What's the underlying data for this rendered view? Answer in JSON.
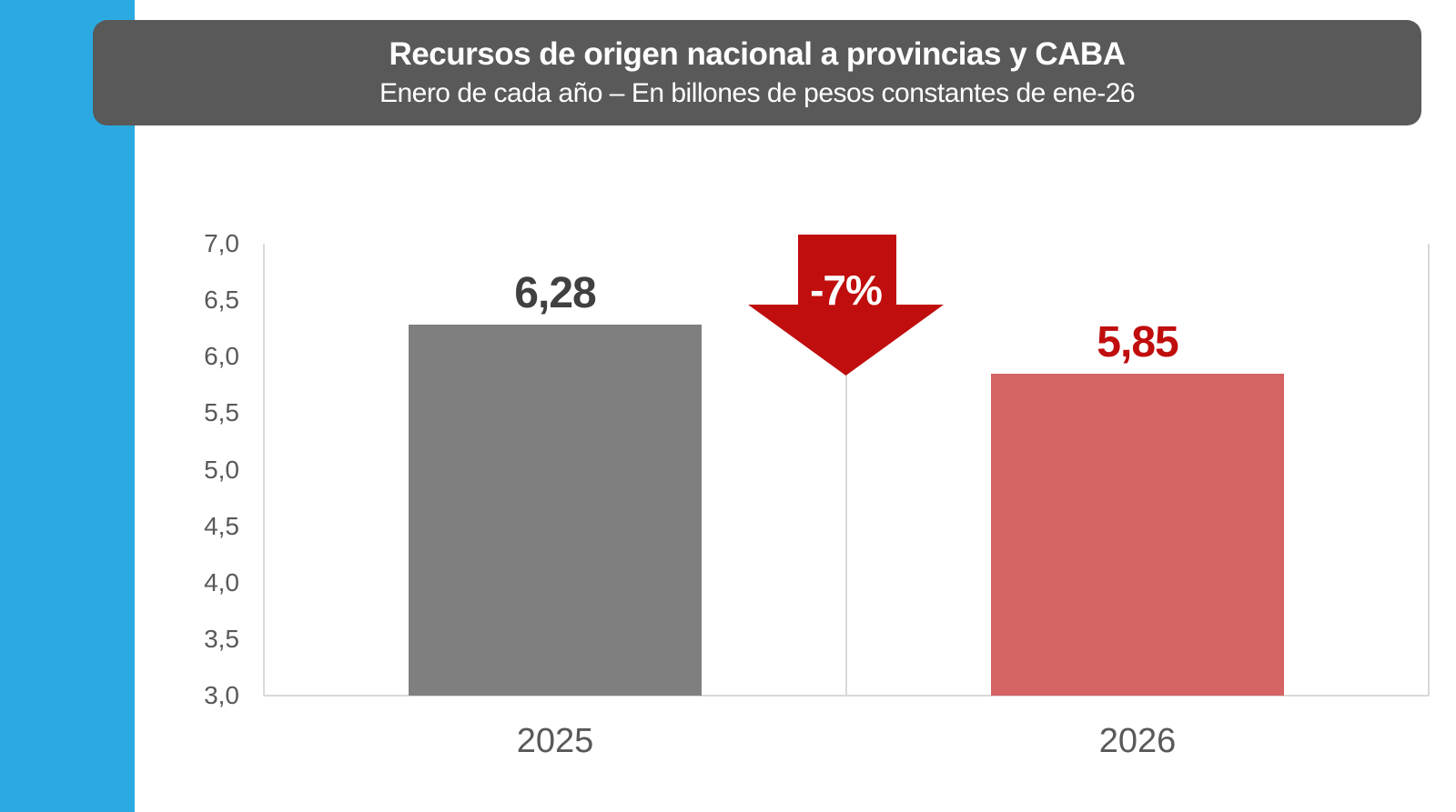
{
  "colors": {
    "left_stripe": "#2BAAE2",
    "banner_bg": "#595959",
    "banner_text": "#FFFFFF",
    "axis_line": "#D9D9D9",
    "tick_text": "#595959",
    "category_text": "#595959",
    "arrow_red": "#C00D0D"
  },
  "title_banner": {
    "title": "Recursos de origen nacional a provincias y CABA",
    "subtitle": "Enero de cada año – En billones de pesos constantes de ene-26"
  },
  "chart_data": {
    "type": "bar",
    "title": "Recursos de origen nacional a provincias y CABA",
    "subtitle": "Enero de cada año – En billones de pesos constantes de ene-26",
    "categories": [
      "2025",
      "2026"
    ],
    "values": [
      6.28,
      5.85
    ],
    "value_labels": [
      "6,28",
      "5,85"
    ],
    "bar_colors": [
      "#7F7F7F",
      "#D56364"
    ],
    "value_label_colors": [
      "#404040",
      "#C00D0D"
    ],
    "xlabel": "",
    "ylabel": "",
    "ylim": [
      3.0,
      7.0
    ],
    "ytick_step": 0.5,
    "ytick_labels": [
      "3,0",
      "3,5",
      "4,0",
      "4,5",
      "5,0",
      "5,5",
      "6,0",
      "6,5",
      "7,0"
    ],
    "grid": "category-boundaries-only",
    "legend": "none",
    "annotation": {
      "text": "-7%",
      "meaning": "percent change 2025 to 2026",
      "color": "#C00D0D"
    }
  }
}
